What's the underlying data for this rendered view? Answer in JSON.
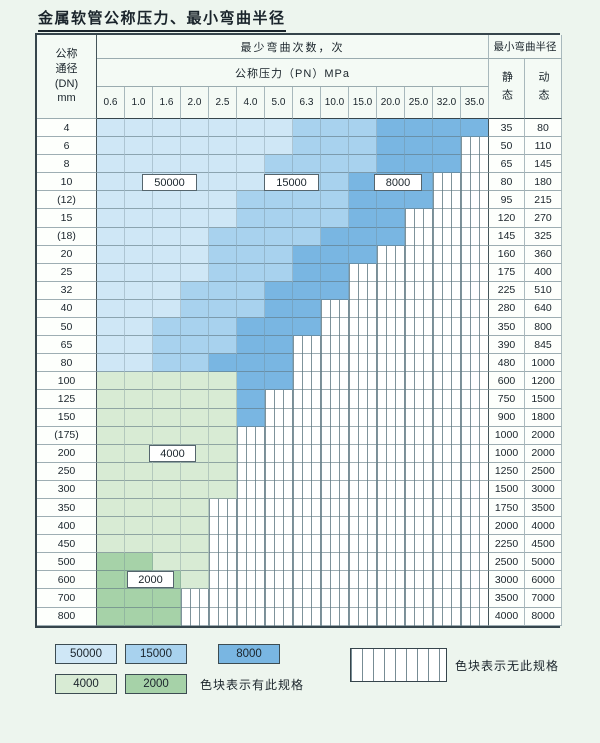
{
  "page": {
    "title": "金属软管公称压力、最小弯曲半径",
    "bg_color": "#edf5ee"
  },
  "table": {
    "header": {
      "dn_label": "公称\n通径\n(DN)\nmm",
      "cycles_label": "最少弯曲次数，次",
      "pressure_label": "公称压力（PN）MPa",
      "radius_label": "最小弯曲半径",
      "static_label": "静态",
      "dynamic_label": "动态"
    }
  },
  "colors": {
    "c50000": "#cfe7f6",
    "c15000": "#a8d2ee",
    "c8000": "#79b6e2",
    "c4000": "#d8ebd4",
    "c2000": "#a6d2a8",
    "page_bg": "#edf5ee"
  },
  "overlays": [
    {
      "text": "50000"
    },
    {
      "text": "15000"
    },
    {
      "text": "8000"
    },
    {
      "text": "4000"
    },
    {
      "text": "2000"
    }
  ],
  "legend": {
    "items": [
      {
        "label": "50000",
        "color": "#cfe7f6"
      },
      {
        "label": "15000",
        "color": "#a8d2ee"
      },
      {
        "label": "8000",
        "color": "#79b6e2"
      },
      {
        "label": "4000",
        "color": "#d8ebd4"
      },
      {
        "label": "2000",
        "color": "#a6d2a8"
      }
    ],
    "has_spec_text": "色块表示有此规格",
    "no_spec_text": "色块表示无此规格"
  },
  "chart_data": {
    "type": "heatmap",
    "title": "金属软管公称压力、最小弯曲半径",
    "xlabel": "公称压力（PN）MPa",
    "ylabel": "公称通径 (DN) mm",
    "value_label": "最少弯曲次数，次",
    "radius_columns": [
      "静态",
      "动态"
    ],
    "cycle_levels": [
      "50000",
      "15000",
      "8000",
      "4000",
      "2000"
    ],
    "no_spec_code": "x",
    "x_ticks": [
      "0.6",
      "1.0",
      "1.6",
      "2.0",
      "2.5",
      "4.0",
      "5.0",
      "6.3",
      "10.0",
      "15.0",
      "20.0",
      "25.0",
      "32.0",
      "35.0"
    ],
    "rows": [
      {
        "dn": "4",
        "static": "35",
        "dynamic": "80",
        "cells": [
          "50000",
          "50000",
          "50000",
          "50000",
          "50000",
          "50000",
          "50000",
          "15000",
          "15000",
          "15000",
          "8000",
          "8000",
          "8000",
          "8000"
        ]
      },
      {
        "dn": "6",
        "static": "50",
        "dynamic": "110",
        "cells": [
          "50000",
          "50000",
          "50000",
          "50000",
          "50000",
          "50000",
          "50000",
          "15000",
          "15000",
          "15000",
          "8000",
          "8000",
          "8000",
          "x"
        ]
      },
      {
        "dn": "8",
        "static": "65",
        "dynamic": "145",
        "cells": [
          "50000",
          "50000",
          "50000",
          "50000",
          "50000",
          "50000",
          "15000",
          "15000",
          "15000",
          "15000",
          "8000",
          "8000",
          "8000",
          "x"
        ]
      },
      {
        "dn": "10",
        "static": "80",
        "dynamic": "180",
        "cells": [
          "50000",
          "50000",
          "50000",
          "50000",
          "50000",
          "50000",
          "15000",
          "15000",
          "15000",
          "8000",
          "8000",
          "8000",
          "x",
          "x"
        ]
      },
      {
        "dn": "(12)",
        "static": "95",
        "dynamic": "215",
        "cells": [
          "50000",
          "50000",
          "50000",
          "50000",
          "50000",
          "15000",
          "15000",
          "15000",
          "15000",
          "8000",
          "8000",
          "8000",
          "x",
          "x"
        ]
      },
      {
        "dn": "15",
        "static": "120",
        "dynamic": "270",
        "cells": [
          "50000",
          "50000",
          "50000",
          "50000",
          "50000",
          "15000",
          "15000",
          "15000",
          "15000",
          "8000",
          "8000",
          "x",
          "x",
          "x"
        ]
      },
      {
        "dn": "(18)",
        "static": "145",
        "dynamic": "325",
        "cells": [
          "50000",
          "50000",
          "50000",
          "50000",
          "15000",
          "15000",
          "15000",
          "15000",
          "8000",
          "8000",
          "8000",
          "x",
          "x",
          "x"
        ]
      },
      {
        "dn": "20",
        "static": "160",
        "dynamic": "360",
        "cells": [
          "50000",
          "50000",
          "50000",
          "50000",
          "15000",
          "15000",
          "15000",
          "8000",
          "8000",
          "8000",
          "x",
          "x",
          "x",
          "x"
        ]
      },
      {
        "dn": "25",
        "static": "175",
        "dynamic": "400",
        "cells": [
          "50000",
          "50000",
          "50000",
          "50000",
          "15000",
          "15000",
          "15000",
          "8000",
          "8000",
          "x",
          "x",
          "x",
          "x",
          "x"
        ]
      },
      {
        "dn": "32",
        "static": "225",
        "dynamic": "510",
        "cells": [
          "50000",
          "50000",
          "50000",
          "15000",
          "15000",
          "15000",
          "8000",
          "8000",
          "8000",
          "x",
          "x",
          "x",
          "x",
          "x"
        ]
      },
      {
        "dn": "40",
        "static": "280",
        "dynamic": "640",
        "cells": [
          "50000",
          "50000",
          "50000",
          "15000",
          "15000",
          "15000",
          "8000",
          "8000",
          "x",
          "x",
          "x",
          "x",
          "x",
          "x"
        ]
      },
      {
        "dn": "50",
        "static": "350",
        "dynamic": "800",
        "cells": [
          "50000",
          "50000",
          "15000",
          "15000",
          "15000",
          "8000",
          "8000",
          "8000",
          "x",
          "x",
          "x",
          "x",
          "x",
          "x"
        ]
      },
      {
        "dn": "65",
        "static": "390",
        "dynamic": "845",
        "cells": [
          "50000",
          "50000",
          "15000",
          "15000",
          "15000",
          "8000",
          "8000",
          "x",
          "x",
          "x",
          "x",
          "x",
          "x",
          "x"
        ]
      },
      {
        "dn": "80",
        "static": "480",
        "dynamic": "1000",
        "cells": [
          "50000",
          "50000",
          "15000",
          "15000",
          "8000",
          "8000",
          "8000",
          "x",
          "x",
          "x",
          "x",
          "x",
          "x",
          "x"
        ]
      },
      {
        "dn": "100",
        "static": "600",
        "dynamic": "1200",
        "cells": [
          "4000",
          "4000",
          "4000",
          "4000",
          "4000",
          "8000",
          "8000",
          "x",
          "x",
          "x",
          "x",
          "x",
          "x",
          "x"
        ]
      },
      {
        "dn": "125",
        "static": "750",
        "dynamic": "1500",
        "cells": [
          "4000",
          "4000",
          "4000",
          "4000",
          "4000",
          "8000",
          "x",
          "x",
          "x",
          "x",
          "x",
          "x",
          "x",
          "x"
        ]
      },
      {
        "dn": "150",
        "static": "900",
        "dynamic": "1800",
        "cells": [
          "4000",
          "4000",
          "4000",
          "4000",
          "4000",
          "8000",
          "x",
          "x",
          "x",
          "x",
          "x",
          "x",
          "x",
          "x"
        ]
      },
      {
        "dn": "(175)",
        "static": "1000",
        "dynamic": "2000",
        "cells": [
          "4000",
          "4000",
          "4000",
          "4000",
          "4000",
          "x",
          "x",
          "x",
          "x",
          "x",
          "x",
          "x",
          "x",
          "x"
        ]
      },
      {
        "dn": "200",
        "static": "1000",
        "dynamic": "2000",
        "cells": [
          "4000",
          "4000",
          "4000",
          "4000",
          "4000",
          "x",
          "x",
          "x",
          "x",
          "x",
          "x",
          "x",
          "x",
          "x"
        ]
      },
      {
        "dn": "250",
        "static": "1250",
        "dynamic": "2500",
        "cells": [
          "4000",
          "4000",
          "4000",
          "4000",
          "4000",
          "x",
          "x",
          "x",
          "x",
          "x",
          "x",
          "x",
          "x",
          "x"
        ]
      },
      {
        "dn": "300",
        "static": "1500",
        "dynamic": "3000",
        "cells": [
          "4000",
          "4000",
          "4000",
          "4000",
          "4000",
          "x",
          "x",
          "x",
          "x",
          "x",
          "x",
          "x",
          "x",
          "x"
        ]
      },
      {
        "dn": "350",
        "static": "1750",
        "dynamic": "3500",
        "cells": [
          "4000",
          "4000",
          "4000",
          "4000",
          "x",
          "x",
          "x",
          "x",
          "x",
          "x",
          "x",
          "x",
          "x",
          "x"
        ]
      },
      {
        "dn": "400",
        "static": "2000",
        "dynamic": "4000",
        "cells": [
          "4000",
          "4000",
          "4000",
          "4000",
          "x",
          "x",
          "x",
          "x",
          "x",
          "x",
          "x",
          "x",
          "x",
          "x"
        ]
      },
      {
        "dn": "450",
        "static": "2250",
        "dynamic": "4500",
        "cells": [
          "4000",
          "4000",
          "4000",
          "4000",
          "x",
          "x",
          "x",
          "x",
          "x",
          "x",
          "x",
          "x",
          "x",
          "x"
        ]
      },
      {
        "dn": "500",
        "static": "2500",
        "dynamic": "5000",
        "cells": [
          "2000",
          "2000",
          "4000",
          "4000",
          "x",
          "x",
          "x",
          "x",
          "x",
          "x",
          "x",
          "x",
          "x",
          "x"
        ]
      },
      {
        "dn": "600",
        "static": "3000",
        "dynamic": "6000",
        "cells": [
          "2000",
          "2000",
          "2000",
          "4000",
          "x",
          "x",
          "x",
          "x",
          "x",
          "x",
          "x",
          "x",
          "x",
          "x"
        ]
      },
      {
        "dn": "700",
        "static": "3500",
        "dynamic": "7000",
        "cells": [
          "2000",
          "2000",
          "2000",
          "x",
          "x",
          "x",
          "x",
          "x",
          "x",
          "x",
          "x",
          "x",
          "x",
          "x"
        ]
      },
      {
        "dn": "800",
        "static": "4000",
        "dynamic": "8000",
        "cells": [
          "2000",
          "2000",
          "2000",
          "x",
          "x",
          "x",
          "x",
          "x",
          "x",
          "x",
          "x",
          "x",
          "x",
          "x"
        ]
      }
    ]
  }
}
